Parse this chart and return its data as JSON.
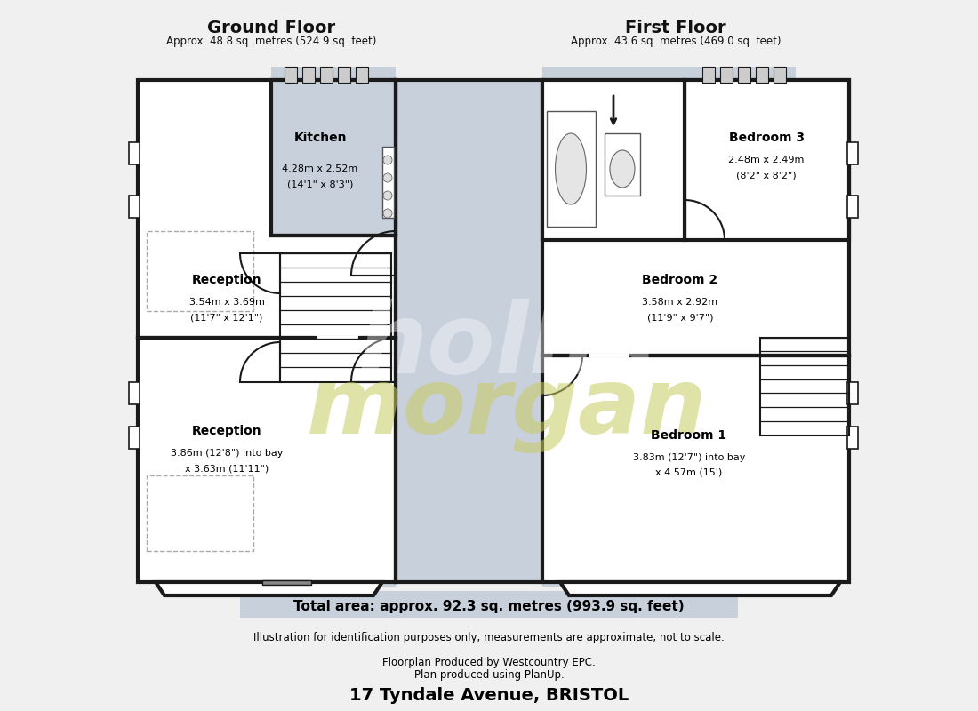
{
  "bg_color": "#f0f0f0",
  "floor_bg_color": "#c8d0dc",
  "wall_color": "#1a1a1a",
  "title_left": "Ground Floor",
  "subtitle_left": "Approx. 48.8 sq. metres (524.9 sq. feet)",
  "title_right": "First Floor",
  "subtitle_right": "Approx. 43.6 sq. metres (469.0 sq. feet)",
  "total_area": "Total area: approx. 92.3 sq. metres (993.9 sq. feet)",
  "disclaimer": "Illustration for identification purposes only, measurements are approximate, not to scale.",
  "produced_by": "Floorplan Produced by Westcountry EPC.\nPlan produced using PlanUp.",
  "address": "17 Tyndale Avenue, BRISTOL",
  "watermark1": "hollis",
  "watermark2": "morgan"
}
